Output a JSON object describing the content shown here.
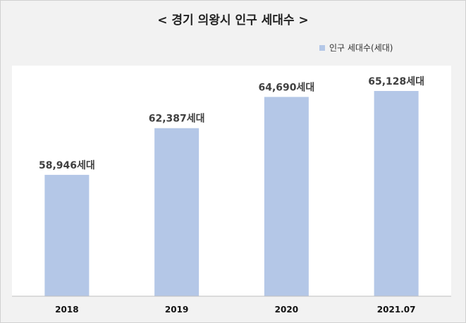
{
  "chart_data": {
    "type": "bar",
    "title": "< 경기 의왕시 인구 세대수 >",
    "categories": [
      "2018",
      "2019",
      "2020",
      "2021.07"
    ],
    "series": [
      {
        "name": "인구 세대수(세대)",
        "values": [
          58946,
          62387,
          64690,
          65128
        ],
        "labels": [
          "58,946세대",
          "62,387세대",
          "64,690세대",
          "65,128세대"
        ]
      }
    ],
    "xlabel": "",
    "ylabel": "",
    "ylim": [
      50000,
      67000
    ],
    "grid": false,
    "legend": "top-right",
    "bar_color": "#b4c7e7"
  }
}
